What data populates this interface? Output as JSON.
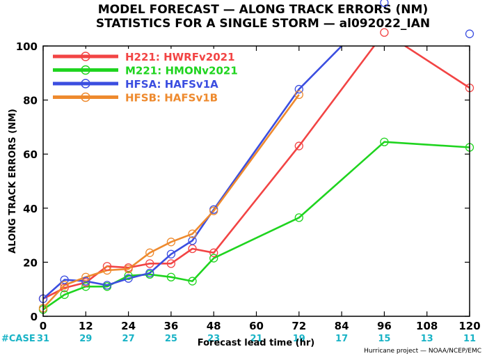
{
  "chart_data": {
    "type": "line",
    "title": [
      "MODEL FORECAST — ALONG TRACK ERRORS (NM)",
      "STATISTICS FOR A SINGLE STORM — al092022_IAN"
    ],
    "xlabel": "Forecast lead time (hr)",
    "ylabel": "ALONG TRACK ERRORS (NM)",
    "xlim": [
      0,
      120
    ],
    "ylim": [
      0,
      100
    ],
    "xticks": [
      0,
      12,
      24,
      36,
      48,
      60,
      72,
      84,
      96,
      108,
      120
    ],
    "yticks": [
      0,
      20,
      40,
      60,
      80,
      100
    ],
    "xtick_labels": [
      "0",
      "12",
      "24",
      "36",
      "48",
      "60",
      "72",
      "84",
      "96",
      "108",
      "120"
    ],
    "ytick_labels": [
      "0",
      "20",
      "40",
      "60",
      "80",
      "100"
    ],
    "grid": false,
    "legend_position": "top-left",
    "case_label": "#CASE",
    "case_color": "#19b3c6",
    "case_counts": [
      {
        "x": 0,
        "n": "31"
      },
      {
        "x": 12,
        "n": "29"
      },
      {
        "x": 24,
        "n": "27"
      },
      {
        "x": 36,
        "n": "25"
      },
      {
        "x": 48,
        "n": "23"
      },
      {
        "x": 60,
        "n": "21"
      },
      {
        "x": 72,
        "n": "19"
      },
      {
        "x": 84,
        "n": "17"
      },
      {
        "x": 96,
        "n": "15"
      },
      {
        "x": 108,
        "n": "13"
      },
      {
        "x": 120,
        "n": "11"
      }
    ],
    "credit": "Hurricane project — NOAA/NCEP/EMC",
    "series": [
      {
        "name": "H221: HWRFv2021",
        "color": "#f24444",
        "x": [
          0,
          6,
          12,
          18,
          24,
          30,
          36,
          42,
          48,
          72,
          96,
          120
        ],
        "y": [
          6.5,
          10.5,
          12.5,
          18.5,
          18,
          19.5,
          19.5,
          25,
          23.5,
          63,
          105,
          84.5
        ]
      },
      {
        "name": "M221: HMONv2021",
        "color": "#1fd41f",
        "x": [
          0,
          6,
          12,
          18,
          24,
          30,
          36,
          42,
          48,
          72,
          96,
          120
        ],
        "y": [
          2.5,
          8,
          11,
          11,
          15,
          15.5,
          14.5,
          13,
          21.5,
          36.5,
          64.5,
          62.5
        ]
      },
      {
        "name": "HFSA: HAFSv1A",
        "color": "#3b4ee0",
        "x": [
          0,
          6,
          12,
          18,
          24,
          30,
          36,
          42,
          48,
          72,
          96,
          120
        ],
        "y": [
          6.5,
          13.5,
          13,
          11.5,
          14,
          16,
          23,
          28,
          39.5,
          84,
          116,
          104.5
        ]
      },
      {
        "name": "HFSB: HAFSv1B",
        "color": "#ee8a2e",
        "x": [
          0,
          6,
          12,
          18,
          24,
          30,
          36,
          42,
          48,
          72
        ],
        "y": [
          3,
          11.5,
          14.5,
          17,
          17.5,
          23.5,
          27.5,
          30.5,
          39,
          82
        ]
      }
    ]
  }
}
